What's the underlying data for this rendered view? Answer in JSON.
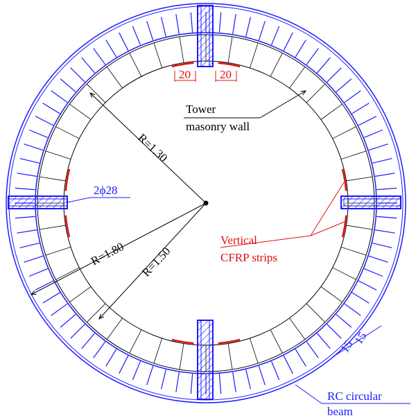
{
  "wall_label": {
    "line1": "Tower",
    "line2": "masonry wall"
  },
  "strip_widths": [
    "20",
    "20"
  ],
  "radii": [
    "R=1.30",
    "R=1.80",
    "R=1.50"
  ],
  "rebar_label": "2ϕ28",
  "cfrp_label": {
    "line1": "Vertical",
    "line2": "CFRP strips"
  },
  "beam_widths": [
    "15",
    "15"
  ],
  "beam_label": {
    "line1": "RC circular",
    "line2": "beam"
  }
}
